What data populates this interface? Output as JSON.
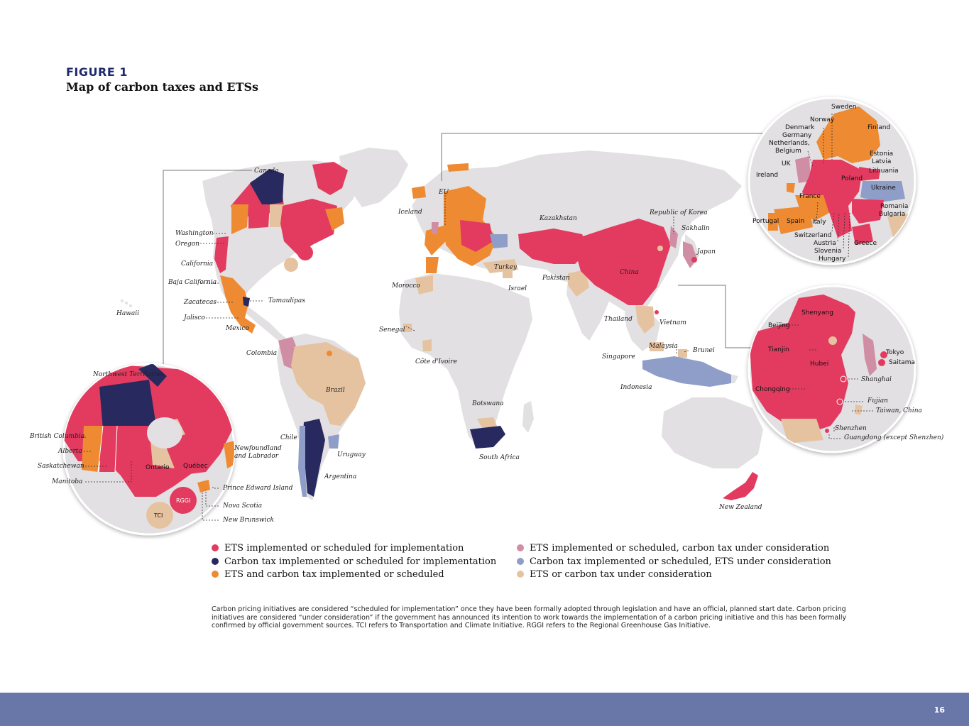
{
  "figure": {
    "label": "FIGURE 1",
    "title": "Map of carbon taxes and ETSs"
  },
  "colors": {
    "ets": "#e23b5f",
    "carbon_tax": "#28295e",
    "both": "#ee8b32",
    "ets_tax_consider": "#cf8ea3",
    "tax_ets_consider": "#8f9ec8",
    "consider": "#e6c3a0",
    "land": "#e2e0e2"
  },
  "map_labels": {
    "canada": "Canada",
    "washington": "Washington",
    "oregon": "Oregon",
    "california": "California",
    "baja": "Baja California",
    "zacatecas": "Zacatecas",
    "tamaulipas": "Tamaulipas",
    "jalisco": "Jalisco",
    "mexico": "Mexico",
    "hawaii": "Hawaii",
    "colombia": "Colombia",
    "brazil": "Brazil",
    "chile": "Chile",
    "uruguay": "Uruguay",
    "argentina": "Argentina",
    "eu": "EU",
    "iceland": "Iceland",
    "morocco": "Morocco",
    "senegal": "Senegal",
    "cote": "Côte d'Ivoire",
    "turkey": "Turkey",
    "israel": "Israel",
    "kazakhstan": "Kazakhstan",
    "pakistan": "Pakistan",
    "china": "China",
    "korea": "Republic of Korea",
    "sakhalin": "Sakhalin",
    "japan": "Japan",
    "thailand": "Thailand",
    "vietnam": "Vietnam",
    "malaysia": "Malaysia",
    "brunei": "Brunei",
    "singapore": "Singapore",
    "indonesia": "Indonesia",
    "botswana": "Botswana",
    "south_africa": "South Africa",
    "new_zealand": "New Zealand"
  },
  "canada_inset": {
    "nwt": "Northwest Territories",
    "bc": "British Columbia",
    "alberta": "Alberta",
    "sask": "Saskatchewan",
    "manitoba": "Manitoba",
    "ontario": "Ontario",
    "quebec": "Québec",
    "nfl1": "Newfoundland",
    "nfl2": "and Labrador",
    "pei": "Prince Edward Island",
    "ns": "Nova Scotia",
    "nb": "New Brunswick",
    "rggi": "RGGI",
    "tci": "TCI"
  },
  "europe_inset": {
    "sweden": "Sweden",
    "norway": "Norway",
    "finland": "Finland",
    "denmark": "Denmark",
    "germany": "Germany",
    "netherlands": "Netherlands,",
    "belgium": "Belgium",
    "uk": "UK",
    "ireland": "Ireland",
    "estonia": "Estonia",
    "latvia": "Latvia",
    "lithuania": "Lithuania",
    "poland": "Poland",
    "ukraine": "Ukraine",
    "france": "France",
    "romania": "Romania",
    "bulgaria": "Bulgaria",
    "portugal": "Portugal",
    "spain": "Spain",
    "italy": "Italy",
    "switzerland": "Switzerland",
    "austria": "Austria",
    "slovenia": "Slovenia",
    "hungary": "Hungary",
    "greece": "Greece"
  },
  "asia_inset": {
    "shenyang": "Shenyang",
    "beijing": "Beijing",
    "tianjin": "Tianjin",
    "hubei": "Hubei",
    "chongqing": "Chongqing",
    "shanghai": "Shanghai",
    "fujian": "Fujian",
    "taiwan": "Taiwan, China",
    "shenzhen": "Shenzhen",
    "guangdong": "Guangdong (except Shenzhen)",
    "tokyo": "Tokyo",
    "saitama": "Saitama"
  },
  "legend": [
    {
      "text": "ETS implemented or scheduled for implementation",
      "color": "#e23b5f"
    },
    {
      "text": "Carbon tax implemented or scheduled for implementation",
      "color": "#28295e"
    },
    {
      "text": "ETS and carbon tax implemented or scheduled",
      "color": "#ee8b32"
    },
    {
      "text": "ETS implemented or scheduled, carbon tax under consideration",
      "color": "#cf8ea3"
    },
    {
      "text": "Carbon tax implemented or scheduled, ETS under consideration",
      "color": "#8f9ec8"
    },
    {
      "text": "ETS or carbon tax under consideration",
      "color": "#e6c3a0"
    }
  ],
  "note": "Carbon pricing initiatives are considered “scheduled for implementation” once they have been formally adopted through legislation and have an official, planned start date. Carbon pricing initiatives are considered “under consideration” if the government has announced its intention to work towards the implementation of a carbon pricing initiative and this has been formally confirmed by official government sources. TCI refers to Transportation and Climate Initiative. RGGI refers to the Regional Greenhouse Gas Initiative.",
  "page_number": "16"
}
